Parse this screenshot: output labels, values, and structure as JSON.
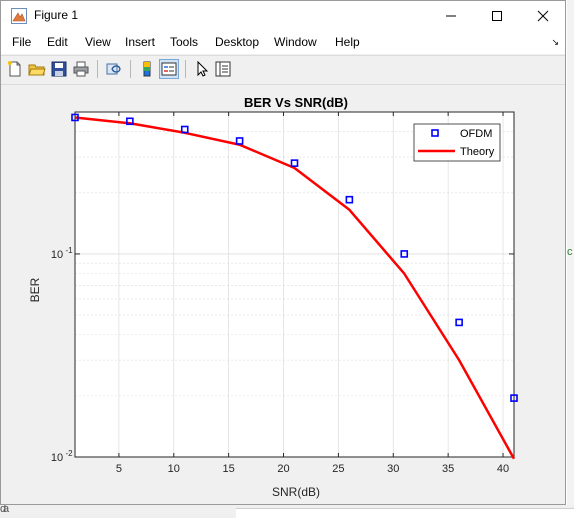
{
  "window": {
    "title": "Figure 1"
  },
  "menu": [
    "File",
    "Edit",
    "View",
    "Insert",
    "Tools",
    "Desktop",
    "Window",
    "Help"
  ],
  "background": {
    "fragments": [
      "=",
      "d",
      "c",
      "B",
      "d",
      "a"
    ]
  },
  "colors": {
    "series1": "#0000ff",
    "series2": "#ff0000",
    "grid": "#dcdcdc"
  },
  "toolbar": {
    "icons": [
      "new-file-icon",
      "open-folder-icon",
      "save-icon",
      "print-icon",
      "link-icon",
      "colorbar-icon",
      "legend-icon",
      "pointer-icon",
      "property-inspector-icon"
    ]
  },
  "chart_data": {
    "type": "line",
    "title": "BER Vs SNR(dB)",
    "xlabel": "SNR(dB)",
    "ylabel": "BER",
    "xlim": [
      1,
      41
    ],
    "ylim": [
      0.01,
      0.5
    ],
    "yscale": "log",
    "grid": true,
    "legend_position": "top-right",
    "x_ticks": [
      "5",
      "10",
      "15",
      "20",
      "25",
      "30",
      "35",
      "40"
    ],
    "x_tick_values": [
      5,
      10,
      15,
      20,
      25,
      30,
      35,
      40
    ],
    "y_ticks": [
      {
        "value": 0.1,
        "base": "10",
        "exp": "-1"
      },
      {
        "value": 0.01,
        "base": "10",
        "exp": "-2"
      }
    ],
    "series": [
      {
        "name": "OFDM",
        "style": "markers",
        "x": [
          1,
          6,
          11,
          16,
          21,
          26,
          31,
          36,
          41
        ],
        "y": [
          0.47,
          0.45,
          0.41,
          0.36,
          0.28,
          0.185,
          0.1,
          0.046,
          0.0195
        ]
      },
      {
        "name": "Theory",
        "style": "line",
        "x": [
          1,
          6,
          11,
          16,
          21,
          26,
          31,
          36,
          41
        ],
        "y": [
          0.47,
          0.44,
          0.395,
          0.345,
          0.265,
          0.165,
          0.08,
          0.03,
          0.0098
        ]
      }
    ]
  }
}
